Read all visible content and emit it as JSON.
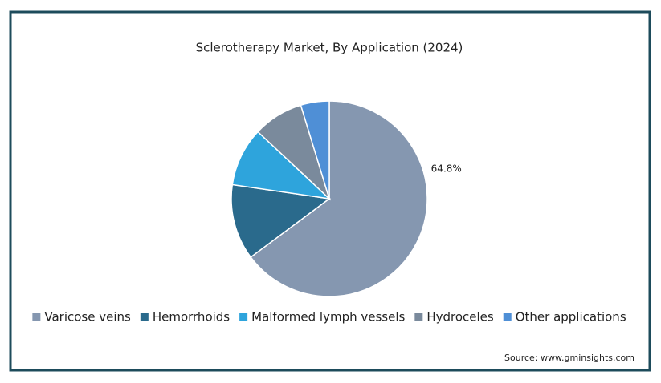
{
  "chart_data": {
    "type": "pie",
    "title": "Sclerotherapy Market, By Application (2024)",
    "categories": [
      "Varicose veins",
      "Hemorrhoids",
      "Malformed lymph vessels",
      "Hydroceles",
      "Other applications"
    ],
    "values": [
      64.8,
      12.5,
      9.7,
      8.3,
      4.7
    ],
    "value_labels": [
      "64.8%",
      null,
      null,
      null,
      null
    ],
    "colors": [
      "#8597b0",
      "#2a6a8c",
      "#2ea4dc",
      "#7a8a9c",
      "#4f8fd6"
    ],
    "legend": "bottom",
    "source": "Source: www.gminsights.com"
  }
}
